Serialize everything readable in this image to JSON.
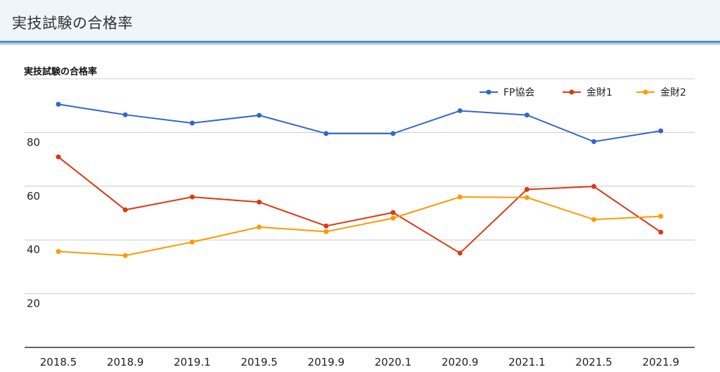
{
  "page": {
    "header_title": "実技試験の合格率"
  },
  "chart_data": {
    "type": "line",
    "title": "実技試験の合格率",
    "xlabel": "",
    "ylabel": "",
    "categories": [
      "2018.5",
      "2018.9",
      "2019.1",
      "2019.5",
      "2019.9",
      "2020.1",
      "2020.9",
      "2021.1",
      "2021.5",
      "2021.9"
    ],
    "ylim": [
      0,
      100
    ],
    "yticks": [
      20,
      40,
      60,
      80
    ],
    "grid": true,
    "legend_position": "top-right",
    "series": [
      {
        "name": "FP協会",
        "color": "#3366cc",
        "values": [
          90.5,
          86.6,
          83.5,
          86.4,
          79.6,
          79.6,
          88.1,
          86.5,
          76.6,
          80.6
        ]
      },
      {
        "name": "金財1",
        "color": "#dc3912",
        "values": [
          70.9,
          51.2,
          56.0,
          54.1,
          45.2,
          50.2,
          35.1,
          58.8,
          59.9,
          42.9
        ]
      },
      {
        "name": "金財2",
        "color": "#ff9900",
        "values": [
          35.7,
          34.2,
          39.2,
          44.8,
          43.1,
          48.1,
          56.0,
          55.8,
          47.6,
          48.8
        ]
      }
    ]
  }
}
